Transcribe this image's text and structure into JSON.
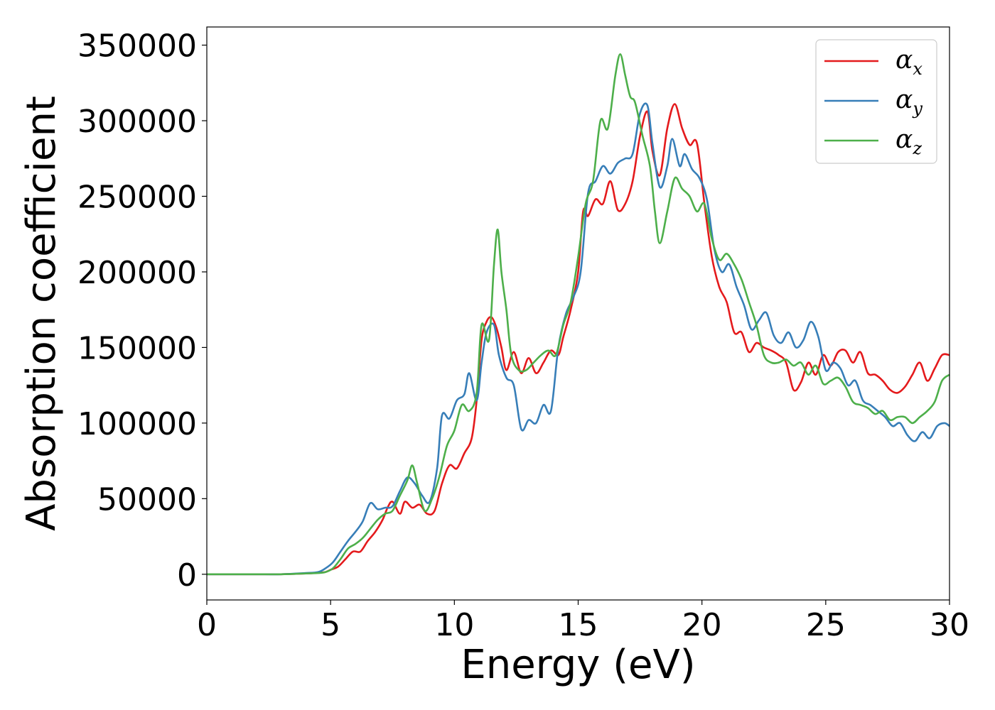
{
  "chart_data": {
    "type": "line",
    "xlabel": "Energy (eV)",
    "ylabel": "Absorption coefficient",
    "xlim": [
      0,
      30
    ],
    "ylim": [
      -17000,
      362000
    ],
    "xticks": [
      "0",
      "5",
      "10",
      "15",
      "20",
      "25",
      "30"
    ],
    "yticks": [
      "0",
      "50000",
      "100000",
      "150000",
      "200000",
      "250000",
      "300000",
      "350000"
    ],
    "legend_position": "top-right",
    "grid": false,
    "series": [
      {
        "name": "α",
        "subscript": "x",
        "color": "#e41a1c",
        "points": [
          [
            0,
            0
          ],
          [
            1,
            0
          ],
          [
            2,
            0
          ],
          [
            3,
            0
          ],
          [
            4,
            500
          ],
          [
            4.5,
            1000
          ],
          [
            4.8,
            1500
          ],
          [
            5,
            3000
          ],
          [
            5.3,
            5000
          ],
          [
            5.6,
            10000
          ],
          [
            5.9,
            15000
          ],
          [
            6.2,
            15000
          ],
          [
            6.5,
            22000
          ],
          [
            6.8,
            28000
          ],
          [
            7.1,
            36000
          ],
          [
            7.3,
            44000
          ],
          [
            7.5,
            48000
          ],
          [
            7.8,
            40000
          ],
          [
            8.0,
            48000
          ],
          [
            8.3,
            44000
          ],
          [
            8.6,
            46000
          ],
          [
            8.9,
            40000
          ],
          [
            9.2,
            42000
          ],
          [
            9.5,
            60000
          ],
          [
            9.8,
            72000
          ],
          [
            10.1,
            70000
          ],
          [
            10.4,
            80000
          ],
          [
            10.7,
            90000
          ],
          [
            10.9,
            115000
          ],
          [
            11.1,
            155000
          ],
          [
            11.3,
            167000
          ],
          [
            11.5,
            170000
          ],
          [
            11.7,
            163000
          ],
          [
            11.9,
            150000
          ],
          [
            12.1,
            135000
          ],
          [
            12.4,
            147000
          ],
          [
            12.7,
            133000
          ],
          [
            13.0,
            143000
          ],
          [
            13.3,
            133000
          ],
          [
            13.6,
            140000
          ],
          [
            13.9,
            148000
          ],
          [
            14.2,
            145000
          ],
          [
            14.4,
            157000
          ],
          [
            14.7,
            175000
          ],
          [
            15.0,
            200000
          ],
          [
            15.2,
            240000
          ],
          [
            15.4,
            237000
          ],
          [
            15.7,
            248000
          ],
          [
            16.0,
            245000
          ],
          [
            16.3,
            260000
          ],
          [
            16.6,
            241000
          ],
          [
            16.9,
            245000
          ],
          [
            17.2,
            260000
          ],
          [
            17.5,
            290000
          ],
          [
            17.8,
            306000
          ],
          [
            18.0,
            280000
          ],
          [
            18.3,
            264000
          ],
          [
            18.6,
            295000
          ],
          [
            18.9,
            311000
          ],
          [
            19.2,
            295000
          ],
          [
            19.5,
            284000
          ],
          [
            19.8,
            285000
          ],
          [
            20.1,
            245000
          ],
          [
            20.4,
            210000
          ],
          [
            20.7,
            190000
          ],
          [
            21.0,
            180000
          ],
          [
            21.3,
            160000
          ],
          [
            21.6,
            160000
          ],
          [
            21.9,
            147000
          ],
          [
            22.2,
            153000
          ],
          [
            22.5,
            150000
          ],
          [
            22.8,
            148000
          ],
          [
            23.1,
            145000
          ],
          [
            23.4,
            140000
          ],
          [
            23.7,
            122000
          ],
          [
            24.0,
            127000
          ],
          [
            24.3,
            140000
          ],
          [
            24.6,
            132000
          ],
          [
            24.9,
            145000
          ],
          [
            25.2,
            138000
          ],
          [
            25.5,
            147000
          ],
          [
            25.8,
            148000
          ],
          [
            26.1,
            140000
          ],
          [
            26.4,
            147000
          ],
          [
            26.7,
            133000
          ],
          [
            27.0,
            132000
          ],
          [
            27.3,
            128000
          ],
          [
            27.6,
            122000
          ],
          [
            27.9,
            120000
          ],
          [
            28.2,
            124000
          ],
          [
            28.5,
            132000
          ],
          [
            28.8,
            140000
          ],
          [
            29.1,
            128000
          ],
          [
            29.4,
            136000
          ],
          [
            29.7,
            145000
          ],
          [
            30.0,
            145000
          ]
        ]
      },
      {
        "name": "α",
        "subscript": "y",
        "color": "#377eb8",
        "points": [
          [
            0,
            0
          ],
          [
            1,
            0
          ],
          [
            2,
            0
          ],
          [
            3,
            0
          ],
          [
            4,
            800
          ],
          [
            4.5,
            1500
          ],
          [
            4.8,
            4000
          ],
          [
            5.1,
            8000
          ],
          [
            5.4,
            15000
          ],
          [
            5.7,
            22000
          ],
          [
            6.0,
            28000
          ],
          [
            6.3,
            35000
          ],
          [
            6.6,
            47000
          ],
          [
            6.9,
            43000
          ],
          [
            7.2,
            44000
          ],
          [
            7.5,
            45000
          ],
          [
            7.8,
            55000
          ],
          [
            8.1,
            64000
          ],
          [
            8.4,
            60000
          ],
          [
            8.7,
            52000
          ],
          [
            9.0,
            48000
          ],
          [
            9.3,
            70000
          ],
          [
            9.5,
            105000
          ],
          [
            9.8,
            103000
          ],
          [
            10.1,
            115000
          ],
          [
            10.4,
            119000
          ],
          [
            10.6,
            133000
          ],
          [
            10.9,
            115000
          ],
          [
            11.1,
            140000
          ],
          [
            11.3,
            160000
          ],
          [
            11.6,
            165000
          ],
          [
            11.8,
            145000
          ],
          [
            12.1,
            130000
          ],
          [
            12.4,
            125000
          ],
          [
            12.7,
            96000
          ],
          [
            13.0,
            102000
          ],
          [
            13.3,
            100000
          ],
          [
            13.6,
            112000
          ],
          [
            13.9,
            108000
          ],
          [
            14.2,
            150000
          ],
          [
            14.5,
            172000
          ],
          [
            14.8,
            183000
          ],
          [
            15.1,
            200000
          ],
          [
            15.4,
            252000
          ],
          [
            15.7,
            260000
          ],
          [
            16.0,
            270000
          ],
          [
            16.3,
            265000
          ],
          [
            16.6,
            272000
          ],
          [
            16.9,
            275000
          ],
          [
            17.2,
            278000
          ],
          [
            17.5,
            305000
          ],
          [
            17.8,
            310000
          ],
          [
            18.0,
            285000
          ],
          [
            18.3,
            256000
          ],
          [
            18.6,
            270000
          ],
          [
            18.8,
            288000
          ],
          [
            19.1,
            270000
          ],
          [
            19.3,
            278000
          ],
          [
            19.6,
            268000
          ],
          [
            19.9,
            262000
          ],
          [
            20.2,
            248000
          ],
          [
            20.5,
            215000
          ],
          [
            20.8,
            200000
          ],
          [
            21.1,
            205000
          ],
          [
            21.4,
            190000
          ],
          [
            21.7,
            178000
          ],
          [
            22.0,
            162000
          ],
          [
            22.3,
            168000
          ],
          [
            22.6,
            173000
          ],
          [
            22.9,
            158000
          ],
          [
            23.2,
            153000
          ],
          [
            23.5,
            160000
          ],
          [
            23.8,
            150000
          ],
          [
            24.1,
            155000
          ],
          [
            24.4,
            167000
          ],
          [
            24.7,
            157000
          ],
          [
            25.0,
            135000
          ],
          [
            25.3,
            140000
          ],
          [
            25.6,
            136000
          ],
          [
            25.9,
            125000
          ],
          [
            26.2,
            128000
          ],
          [
            26.5,
            115000
          ],
          [
            26.8,
            112000
          ],
          [
            27.1,
            108000
          ],
          [
            27.4,
            104000
          ],
          [
            27.7,
            98000
          ],
          [
            28.0,
            100000
          ],
          [
            28.3,
            92000
          ],
          [
            28.6,
            88000
          ],
          [
            28.9,
            94000
          ],
          [
            29.2,
            90000
          ],
          [
            29.5,
            98000
          ],
          [
            29.8,
            100000
          ],
          [
            30.0,
            98000
          ]
        ]
      },
      {
        "name": "α",
        "subscript": "z",
        "color": "#4daf4a",
        "points": [
          [
            0,
            0
          ],
          [
            1,
            0
          ],
          [
            2,
            0
          ],
          [
            3,
            0
          ],
          [
            4,
            500
          ],
          [
            4.5,
            800
          ],
          [
            4.8,
            1500
          ],
          [
            5.1,
            4000
          ],
          [
            5.4,
            10000
          ],
          [
            5.7,
            17000
          ],
          [
            6.0,
            20000
          ],
          [
            6.3,
            24000
          ],
          [
            6.6,
            30000
          ],
          [
            6.9,
            36000
          ],
          [
            7.2,
            40000
          ],
          [
            7.5,
            42000
          ],
          [
            7.8,
            52000
          ],
          [
            8.1,
            62000
          ],
          [
            8.3,
            72000
          ],
          [
            8.5,
            60000
          ],
          [
            8.8,
            42000
          ],
          [
            9.1,
            50000
          ],
          [
            9.4,
            65000
          ],
          [
            9.7,
            85000
          ],
          [
            10.0,
            95000
          ],
          [
            10.3,
            112000
          ],
          [
            10.6,
            108000
          ],
          [
            10.9,
            120000
          ],
          [
            11.1,
            165000
          ],
          [
            11.4,
            155000
          ],
          [
            11.6,
            205000
          ],
          [
            11.75,
            228000
          ],
          [
            11.9,
            200000
          ],
          [
            12.1,
            175000
          ],
          [
            12.3,
            145000
          ],
          [
            12.6,
            135000
          ],
          [
            12.9,
            135000
          ],
          [
            13.2,
            140000
          ],
          [
            13.5,
            145000
          ],
          [
            13.8,
            148000
          ],
          [
            14.1,
            145000
          ],
          [
            14.4,
            165000
          ],
          [
            14.7,
            180000
          ],
          [
            15.0,
            210000
          ],
          [
            15.3,
            245000
          ],
          [
            15.6,
            260000
          ],
          [
            15.9,
            300000
          ],
          [
            16.2,
            295000
          ],
          [
            16.5,
            330000
          ],
          [
            16.7,
            344000
          ],
          [
            16.9,
            330000
          ],
          [
            17.1,
            316000
          ],
          [
            17.3,
            312000
          ],
          [
            17.6,
            290000
          ],
          [
            17.9,
            270000
          ],
          [
            18.1,
            240000
          ],
          [
            18.3,
            219000
          ],
          [
            18.6,
            240000
          ],
          [
            18.9,
            262000
          ],
          [
            19.2,
            255000
          ],
          [
            19.5,
            250000
          ],
          [
            19.8,
            240000
          ],
          [
            20.1,
            245000
          ],
          [
            20.4,
            222000
          ],
          [
            20.7,
            208000
          ],
          [
            21.0,
            212000
          ],
          [
            21.3,
            205000
          ],
          [
            21.6,
            195000
          ],
          [
            21.9,
            180000
          ],
          [
            22.2,
            165000
          ],
          [
            22.5,
            145000
          ],
          [
            22.8,
            140000
          ],
          [
            23.1,
            140000
          ],
          [
            23.4,
            142000
          ],
          [
            23.7,
            138000
          ],
          [
            24.0,
            140000
          ],
          [
            24.3,
            132000
          ],
          [
            24.6,
            138000
          ],
          [
            24.9,
            126000
          ],
          [
            25.2,
            128000
          ],
          [
            25.5,
            130000
          ],
          [
            25.8,
            124000
          ],
          [
            26.1,
            114000
          ],
          [
            26.4,
            112000
          ],
          [
            26.7,
            110000
          ],
          [
            27.0,
            106000
          ],
          [
            27.3,
            108000
          ],
          [
            27.6,
            102000
          ],
          [
            27.9,
            104000
          ],
          [
            28.2,
            104000
          ],
          [
            28.5,
            100000
          ],
          [
            28.8,
            104000
          ],
          [
            29.1,
            108000
          ],
          [
            29.4,
            114000
          ],
          [
            29.7,
            128000
          ],
          [
            30.0,
            132000
          ]
        ]
      }
    ]
  }
}
